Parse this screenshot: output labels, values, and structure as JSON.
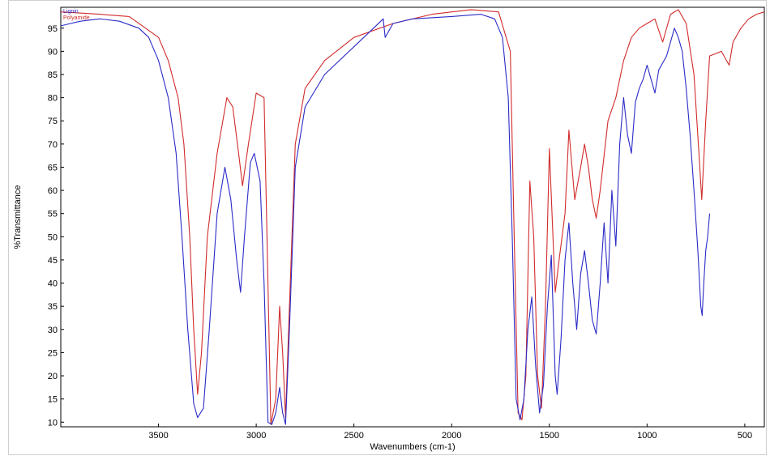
{
  "chart_data": {
    "type": "line",
    "title": "",
    "xlabel": "Wavenumbers (cm-1)",
    "ylabel": "%Transmittance",
    "xlim": [
      4000,
      400
    ],
    "ylim": [
      9,
      99.5
    ],
    "x_ticks": [
      3500,
      3000,
      2500,
      2000,
      1500,
      1000,
      500
    ],
    "y_ticks": [
      10,
      15,
      20,
      25,
      30,
      35,
      40,
      45,
      50,
      55,
      60,
      65,
      70,
      75,
      80,
      85,
      90,
      95
    ],
    "grid": false,
    "legend": {
      "placement": "top-left",
      "entries": [
        "Lignin",
        "Polyamide"
      ]
    },
    "series": [
      {
        "name": "Lignin",
        "color": "#d22b2b",
        "points": [
          [
            4000,
            98.5
          ],
          [
            3800,
            98
          ],
          [
            3650,
            97.5
          ],
          [
            3500,
            93
          ],
          [
            3450,
            88
          ],
          [
            3400,
            80
          ],
          [
            3370,
            70
          ],
          [
            3340,
            50
          ],
          [
            3320,
            30
          ],
          [
            3300,
            16
          ],
          [
            3280,
            25
          ],
          [
            3250,
            50
          ],
          [
            3200,
            68
          ],
          [
            3150,
            80
          ],
          [
            3120,
            78
          ],
          [
            3090,
            68
          ],
          [
            3070,
            61
          ],
          [
            3040,
            70
          ],
          [
            3000,
            81
          ],
          [
            2960,
            80
          ],
          [
            2940,
            40
          ],
          [
            2925,
            9.5
          ],
          [
            2900,
            15
          ],
          [
            2880,
            35
          ],
          [
            2865,
            25
          ],
          [
            2850,
            11
          ],
          [
            2830,
            35
          ],
          [
            2800,
            70
          ],
          [
            2750,
            82
          ],
          [
            2650,
            88
          ],
          [
            2500,
            93
          ],
          [
            2300,
            96
          ],
          [
            2100,
            98
          ],
          [
            1900,
            99
          ],
          [
            1760,
            98.5
          ],
          [
            1700,
            90
          ],
          [
            1680,
            50
          ],
          [
            1660,
            12
          ],
          [
            1640,
            10.5
          ],
          [
            1620,
            20
          ],
          [
            1600,
            62
          ],
          [
            1580,
            50
          ],
          [
            1560,
            20
          ],
          [
            1540,
            13
          ],
          [
            1520,
            35
          ],
          [
            1500,
            69
          ],
          [
            1470,
            38
          ],
          [
            1450,
            45
          ],
          [
            1420,
            55
          ],
          [
            1400,
            73
          ],
          [
            1370,
            58
          ],
          [
            1340,
            65
          ],
          [
            1320,
            70
          ],
          [
            1300,
            65
          ],
          [
            1280,
            58
          ],
          [
            1260,
            54
          ],
          [
            1240,
            60
          ],
          [
            1200,
            75
          ],
          [
            1160,
            80
          ],
          [
            1120,
            88
          ],
          [
            1080,
            93
          ],
          [
            1040,
            95
          ],
          [
            1000,
            96
          ],
          [
            960,
            97
          ],
          [
            920,
            92
          ],
          [
            880,
            98
          ],
          [
            840,
            99
          ],
          [
            800,
            96
          ],
          [
            760,
            85
          ],
          [
            730,
            65
          ],
          [
            720,
            58
          ],
          [
            700,
            75
          ],
          [
            680,
            89
          ],
          [
            620,
            90
          ],
          [
            580,
            87
          ],
          [
            560,
            92
          ],
          [
            520,
            95
          ],
          [
            480,
            97
          ],
          [
            440,
            98
          ],
          [
            400,
            98.5
          ]
        ]
      },
      {
        "name": "Polyamide",
        "color": "#2b2bc8",
        "points": [
          [
            4000,
            95.5
          ],
          [
            3900,
            96.5
          ],
          [
            3800,
            97
          ],
          [
            3700,
            96.5
          ],
          [
            3600,
            95
          ],
          [
            3550,
            93
          ],
          [
            3500,
            88
          ],
          [
            3450,
            80
          ],
          [
            3410,
            68
          ],
          [
            3380,
            50
          ],
          [
            3350,
            30
          ],
          [
            3320,
            14
          ],
          [
            3300,
            11
          ],
          [
            3270,
            13
          ],
          [
            3240,
            30
          ],
          [
            3200,
            55
          ],
          [
            3160,
            65
          ],
          [
            3130,
            58
          ],
          [
            3100,
            45
          ],
          [
            3080,
            38
          ],
          [
            3060,
            50
          ],
          [
            3030,
            66
          ],
          [
            3010,
            68
          ],
          [
            2980,
            62
          ],
          [
            2960,
            40
          ],
          [
            2940,
            10
          ],
          [
            2920,
            9.5
          ],
          [
            2900,
            12
          ],
          [
            2880,
            17.5
          ],
          [
            2865,
            12
          ],
          [
            2850,
            9.5
          ],
          [
            2830,
            30
          ],
          [
            2800,
            65
          ],
          [
            2750,
            78
          ],
          [
            2650,
            85
          ],
          [
            2500,
            91
          ],
          [
            2400,
            95
          ],
          [
            2350,
            97
          ],
          [
            2340,
            93
          ],
          [
            2300,
            96
          ],
          [
            2200,
            97
          ],
          [
            2000,
            97.5
          ],
          [
            1850,
            98
          ],
          [
            1780,
            97
          ],
          [
            1740,
            93
          ],
          [
            1710,
            80
          ],
          [
            1690,
            50
          ],
          [
            1670,
            15
          ],
          [
            1650,
            10.5
          ],
          [
            1630,
            15
          ],
          [
            1610,
            30
          ],
          [
            1590,
            37
          ],
          [
            1570,
            22
          ],
          [
            1550,
            12
          ],
          [
            1530,
            18
          ],
          [
            1510,
            35
          ],
          [
            1490,
            46
          ],
          [
            1470,
            20
          ],
          [
            1460,
            16
          ],
          [
            1440,
            28
          ],
          [
            1420,
            45
          ],
          [
            1400,
            53
          ],
          [
            1380,
            40
          ],
          [
            1360,
            30
          ],
          [
            1340,
            42
          ],
          [
            1320,
            47
          ],
          [
            1300,
            40
          ],
          [
            1280,
            32
          ],
          [
            1260,
            29
          ],
          [
            1240,
            40
          ],
          [
            1220,
            53
          ],
          [
            1200,
            40
          ],
          [
            1180,
            60
          ],
          [
            1160,
            48
          ],
          [
            1140,
            70
          ],
          [
            1120,
            80
          ],
          [
            1100,
            72
          ],
          [
            1080,
            68
          ],
          [
            1060,
            79
          ],
          [
            1040,
            82
          ],
          [
            1020,
            84
          ],
          [
            1000,
            87
          ],
          [
            980,
            84
          ],
          [
            960,
            81
          ],
          [
            940,
            86
          ],
          [
            900,
            89
          ],
          [
            860,
            95
          ],
          [
            840,
            93
          ],
          [
            820,
            90
          ],
          [
            800,
            82
          ],
          [
            780,
            72
          ],
          [
            760,
            60
          ],
          [
            740,
            47
          ],
          [
            725,
            35
          ],
          [
            718,
            33
          ],
          [
            710,
            40
          ],
          [
            700,
            47
          ],
          [
            690,
            50
          ],
          [
            680,
            55
          ]
        ]
      }
    ]
  }
}
